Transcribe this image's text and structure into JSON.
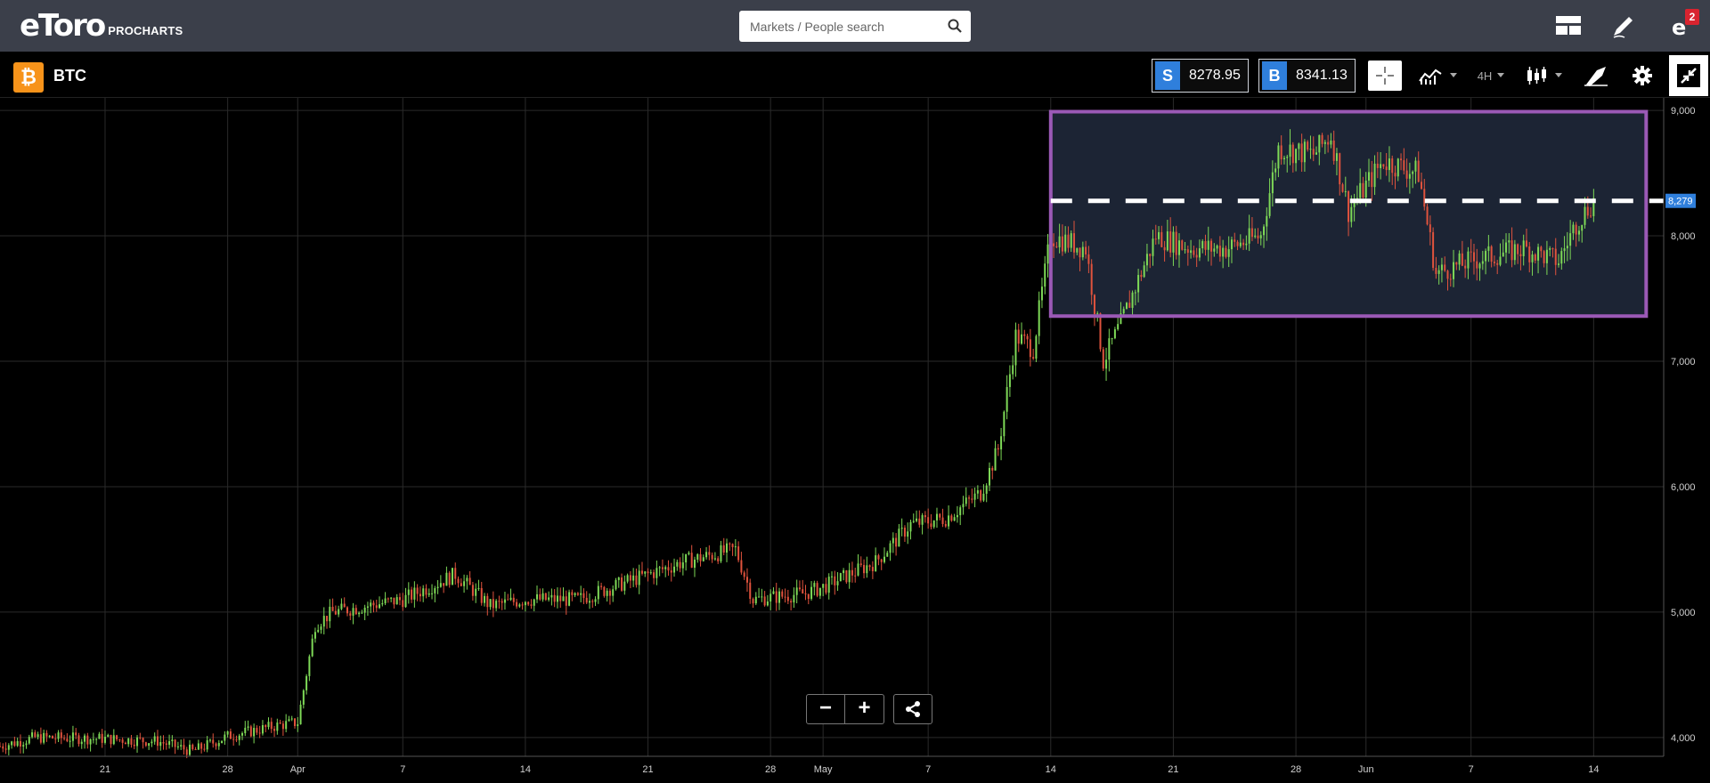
{
  "header": {
    "brand": "eToro",
    "product": "PROCHARTS",
    "search": {
      "placeholder": "Markets / People search"
    },
    "notifications": {
      "count": "2"
    }
  },
  "toolbar": {
    "symbol": "BTC",
    "sell": {
      "label": "S",
      "price": "8278.95"
    },
    "buy": {
      "label": "B",
      "price": "8341.13"
    },
    "timeframe": "4H",
    "icons": [
      "crosshair-icon",
      "indicators-icon",
      "timeframe-dropdown",
      "candlestick-icon",
      "drawing-tools-icon",
      "gear-icon",
      "collapse-icon"
    ]
  },
  "colors": {
    "up": "#7ed957",
    "down": "#e0533d",
    "rectangle": "#9b59b6",
    "price_tag": "#2f7fdc",
    "topbar": "#3b3f4a"
  },
  "chart_data": {
    "type": "candlestick",
    "symbol": "BTC",
    "timeframe": "4H",
    "y_ticks": [
      "4,000",
      "5,000",
      "6,000",
      "7,000",
      "8,000",
      "9,000"
    ],
    "y_tick_values": [
      4000,
      5000,
      6000,
      7000,
      8000,
      9000
    ],
    "x_ticks": [
      "21",
      "28",
      "Apr",
      "7",
      "14",
      "21",
      "28",
      "May",
      "7",
      "14",
      "21",
      "28",
      "Jun",
      "7",
      "14"
    ],
    "x_tick_dates": [
      "2019-03-21",
      "2019-03-28",
      "2019-04-01",
      "2019-04-07",
      "2019-04-14",
      "2019-04-21",
      "2019-04-28",
      "2019-05-01",
      "2019-05-07",
      "2019-05-14",
      "2019-05-21",
      "2019-05-28",
      "2019-06-01",
      "2019-06-07",
      "2019-06-14"
    ],
    "last_price_label": "8,279",
    "last_price": 8279,
    "ylim": [
      3850,
      9100
    ],
    "xlim": [
      "2019-03-15",
      "2019-06-18"
    ],
    "grid": true,
    "anchors": [
      [
        "2019-03-15",
        3930
      ],
      [
        "2019-03-17",
        4000
      ],
      [
        "2019-03-21",
        3990
      ],
      [
        "2019-03-24",
        3970
      ],
      [
        "2019-03-26",
        3890
      ],
      [
        "2019-03-28",
        4010
      ],
      [
        "2019-03-31",
        4100
      ],
      [
        "2019-04-01",
        4120
      ],
      [
        "2019-04-02",
        4900
      ],
      [
        "2019-04-03",
        5000
      ],
      [
        "2019-04-07",
        5100
      ],
      [
        "2019-04-10",
        5300
      ],
      [
        "2019-04-12",
        5050
      ],
      [
        "2019-04-14",
        5100
      ],
      [
        "2019-04-17",
        5100
      ],
      [
        "2019-04-20",
        5250
      ],
      [
        "2019-04-23",
        5400
      ],
      [
        "2019-04-26",
        5500
      ],
      [
        "2019-04-27",
        5100
      ],
      [
        "2019-04-30",
        5150
      ],
      [
        "2019-05-01",
        5200
      ],
      [
        "2019-05-04",
        5400
      ],
      [
        "2019-05-06",
        5700
      ],
      [
        "2019-05-08",
        5750
      ],
      [
        "2019-05-10",
        5950
      ],
      [
        "2019-05-11",
        6300
      ],
      [
        "2019-05-12",
        7200
      ],
      [
        "2019-05-13",
        7100
      ],
      [
        "2019-05-14",
        8000
      ],
      [
        "2019-05-16",
        7900
      ],
      [
        "2019-05-17",
        7000
      ],
      [
        "2019-05-18",
        7300
      ],
      [
        "2019-05-20",
        8000
      ],
      [
        "2019-05-22",
        7900
      ],
      [
        "2019-05-24",
        7900
      ],
      [
        "2019-05-26",
        8000
      ],
      [
        "2019-05-27",
        8700
      ],
      [
        "2019-05-29",
        8650
      ],
      [
        "2019-05-30",
        8800
      ],
      [
        "2019-05-31",
        8200
      ],
      [
        "2019-06-02",
        8600
      ],
      [
        "2019-06-04",
        8500
      ],
      [
        "2019-06-05",
        7700
      ],
      [
        "2019-06-07",
        7800
      ],
      [
        "2019-06-10",
        7900
      ],
      [
        "2019-06-12",
        7800
      ],
      [
        "2019-06-13",
        8100
      ],
      [
        "2019-06-14",
        8279
      ]
    ],
    "annotations": {
      "range_box": {
        "x": [
          "2019-05-14",
          "2019-06-17"
        ],
        "y": [
          7360,
          8990
        ]
      },
      "dashed_level": 8279
    }
  }
}
